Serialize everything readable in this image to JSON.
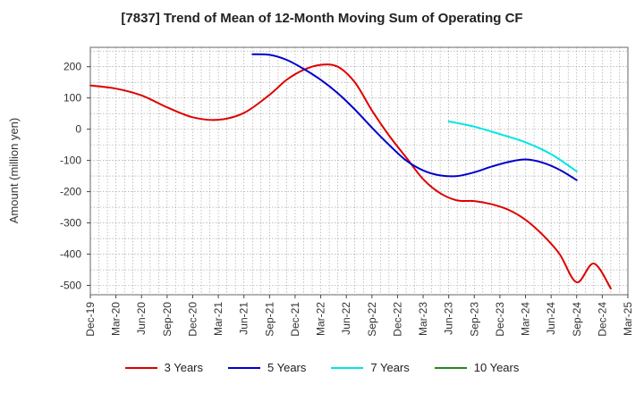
{
  "chart_data": {
    "type": "line",
    "title": "[7837]  Trend of Mean of 12-Month Moving Sum of Operating CF",
    "xlabel": "",
    "ylabel": "Amount (million yen)",
    "ylim": [
      -530,
      262
    ],
    "yticks": [
      200,
      100,
      0,
      -100,
      -200,
      -300,
      -400,
      -500
    ],
    "x_tick_labels": [
      "Dec-19",
      "Mar-20",
      "Jun-20",
      "Sep-20",
      "Dec-20",
      "Mar-21",
      "Jun-21",
      "Sep-21",
      "Dec-21",
      "Mar-22",
      "Jun-22",
      "Sep-22",
      "Dec-22",
      "Mar-23",
      "Jun-23",
      "Sep-23",
      "Dec-23",
      "Mar-24",
      "Jun-24",
      "Sep-24",
      "Dec-24",
      "Mar-25"
    ],
    "x_index_range": [
      0,
      63
    ],
    "grid": true,
    "legend_position": "bottom",
    "series": [
      {
        "name": "3 Years",
        "color": "#dd0000",
        "x": [
          0,
          3,
          6,
          9,
          12,
          15,
          18,
          21,
          23,
          25,
          27,
          29,
          31,
          33,
          35,
          37,
          39,
          41,
          43,
          45,
          47,
          49,
          51,
          53,
          55,
          57,
          59,
          61
        ],
        "y": [
          140,
          130,
          108,
          70,
          38,
          30,
          52,
          110,
          158,
          190,
          206,
          200,
          150,
          60,
          -20,
          -90,
          -160,
          -205,
          -228,
          -230,
          -240,
          -258,
          -290,
          -338,
          -400,
          -490,
          -430,
          -510
        ]
      },
      {
        "name": "5 Years",
        "color": "#0000cc",
        "x": [
          19,
          21,
          23,
          25,
          27,
          29,
          31,
          33,
          35,
          37,
          39,
          41,
          43,
          45,
          47,
          49,
          51,
          53,
          55,
          57
        ],
        "y": [
          240,
          238,
          222,
          193,
          158,
          115,
          63,
          5,
          -50,
          -100,
          -132,
          -148,
          -150,
          -138,
          -120,
          -105,
          -97,
          -107,
          -130,
          -163
        ]
      },
      {
        "name": "7 Years",
        "color": "#00e5e5",
        "x": [
          42,
          45,
          48,
          51,
          54,
          57
        ],
        "y": [
          25,
          8,
          -16,
          -42,
          -80,
          -135
        ]
      },
      {
        "name": "10 Years",
        "color": "#228822",
        "x": [],
        "y": []
      }
    ]
  }
}
